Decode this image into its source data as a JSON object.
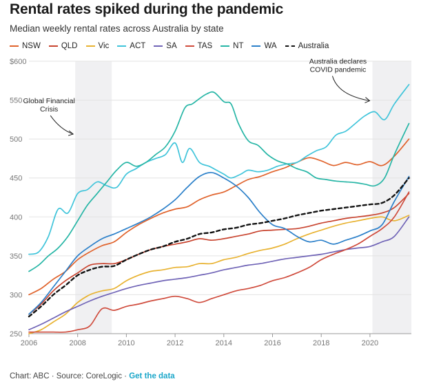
{
  "header": {
    "title": "Rental rates spiked during the pandemic",
    "subtitle": "Median weekly rental rates across Australia by state"
  },
  "footer": {
    "source": "Chart: ABC · Source: CoreLogic · ",
    "link": "Get the data"
  },
  "chart_data": {
    "type": "line",
    "title": "Rental rates spiked during the pandemic",
    "subtitle": "Median weekly rental rates across Australia by state",
    "xlabel": "",
    "ylabel": "",
    "xlim": [
      2006,
      2021.7
    ],
    "ylim": [
      250,
      600
    ],
    "xticks": [
      2006,
      2008,
      2010,
      2012,
      2014,
      2016,
      2018,
      2020
    ],
    "xtick_labels": [
      "2006",
      "2008",
      "2010",
      "2012",
      "2014",
      "2016",
      "2018",
      "2020"
    ],
    "yticks": [
      250,
      300,
      350,
      400,
      450,
      500,
      550,
      600
    ],
    "ytick_labels": [
      "250",
      "300",
      "350",
      "400",
      "450",
      "500",
      "550",
      "$600"
    ],
    "grid": true,
    "shaded_periods": [
      [
        2007.9,
        2009.4
      ],
      [
        2020.1,
        2021.7
      ]
    ],
    "annotations": [
      {
        "text": [
          "Global Financial",
          "Crisis"
        ],
        "x": 2007.9,
        "y": 509
      },
      {
        "text": [
          "Australia declares",
          "COVID pandemic"
        ],
        "x": 2020.1,
        "y": 551
      }
    ],
    "series": [
      {
        "name": "NSW",
        "color": "#e0622b",
        "dashed": false,
        "x": [
          2006,
          2006.5,
          2007,
          2007.5,
          2008,
          2008.5,
          2009,
          2009.5,
          2010,
          2010.5,
          2011,
          2011.5,
          2012,
          2012.5,
          2013,
          2013.5,
          2014,
          2014.5,
          2015,
          2015.5,
          2016,
          2016.5,
          2017,
          2017.5,
          2018,
          2018.5,
          2019,
          2019.5,
          2020,
          2020.5,
          2021,
          2021.6
        ],
        "y": [
          300,
          308,
          320,
          330,
          345,
          355,
          363,
          368,
          380,
          390,
          398,
          405,
          410,
          413,
          422,
          428,
          432,
          440,
          448,
          452,
          458,
          463,
          470,
          476,
          472,
          466,
          470,
          467,
          471,
          466,
          478,
          500
        ]
      },
      {
        "name": "QLD",
        "color": "#c8432e",
        "dashed": false,
        "x": [
          2006,
          2006.5,
          2007,
          2007.5,
          2008,
          2008.5,
          2009,
          2009.5,
          2010,
          2010.5,
          2011,
          2011.5,
          2012,
          2012.5,
          2013,
          2013.5,
          2014,
          2014.5,
          2015,
          2015.5,
          2016,
          2016.5,
          2017,
          2017.5,
          2018,
          2018.5,
          2019,
          2019.5,
          2020,
          2020.5,
          2021,
          2021.6
        ],
        "y": [
          275,
          288,
          305,
          318,
          328,
          338,
          340,
          340,
          345,
          352,
          358,
          362,
          365,
          368,
          372,
          370,
          372,
          375,
          378,
          382,
          383,
          384,
          385,
          388,
          392,
          395,
          398,
          400,
          402,
          405,
          412,
          430
        ]
      },
      {
        "name": "Vic",
        "color": "#e8b230",
        "dashed": false,
        "x": [
          2006,
          2006.5,
          2007,
          2007.5,
          2008,
          2008.5,
          2009,
          2009.5,
          2010,
          2010.5,
          2011,
          2011.5,
          2012,
          2012.5,
          2013,
          2013.5,
          2014,
          2014.5,
          2015,
          2015.5,
          2016,
          2016.5,
          2017,
          2017.5,
          2018,
          2018.5,
          2019,
          2019.5,
          2020,
          2020.5,
          2021,
          2021.6
        ],
        "y": [
          250,
          255,
          265,
          275,
          290,
          300,
          305,
          308,
          318,
          325,
          330,
          332,
          335,
          336,
          340,
          340,
          345,
          348,
          353,
          357,
          360,
          365,
          372,
          378,
          383,
          388,
          392,
          395,
          398,
          400,
          395,
          402
        ]
      },
      {
        "name": "ACT",
        "color": "#3fc4da",
        "dashed": false,
        "x": [
          2006,
          2006.4,
          2006.8,
          2007.2,
          2007.6,
          2008,
          2008.4,
          2008.8,
          2009.2,
          2009.6,
          2010,
          2010.4,
          2010.8,
          2011.2,
          2011.6,
          2012,
          2012.3,
          2012.6,
          2013,
          2013.4,
          2013.7,
          2014,
          2014.3,
          2014.7,
          2015,
          2015.4,
          2015.8,
          2016.2,
          2016.6,
          2017,
          2017.4,
          2017.8,
          2018.2,
          2018.6,
          2019,
          2019.4,
          2019.8,
          2020.2,
          2020.6,
          2021,
          2021.6
        ],
        "y": [
          352,
          355,
          375,
          410,
          405,
          430,
          435,
          445,
          440,
          438,
          455,
          462,
          470,
          475,
          480,
          495,
          470,
          488,
          470,
          465,
          460,
          455,
          450,
          455,
          460,
          458,
          460,
          465,
          468,
          470,
          478,
          485,
          490,
          505,
          510,
          520,
          530,
          535,
          525,
          545,
          570
        ]
      },
      {
        "name": "SA",
        "color": "#6f63b6",
        "dashed": false,
        "x": [
          2006,
          2006.5,
          2007,
          2007.5,
          2008,
          2008.5,
          2009,
          2009.5,
          2010,
          2010.5,
          2011,
          2011.5,
          2012,
          2012.5,
          2013,
          2013.5,
          2014,
          2014.5,
          2015,
          2015.5,
          2016,
          2016.5,
          2017,
          2017.5,
          2018,
          2018.5,
          2019,
          2019.5,
          2020,
          2020.5,
          2021,
          2021.6
        ],
        "y": [
          255,
          262,
          270,
          278,
          285,
          292,
          298,
          303,
          308,
          312,
          315,
          318,
          320,
          322,
          325,
          328,
          332,
          335,
          338,
          340,
          343,
          346,
          348,
          350,
          352,
          355,
          358,
          360,
          362,
          368,
          375,
          400
        ]
      },
      {
        "name": "TAS",
        "color": "#cf4a3b",
        "dashed": false,
        "x": [
          2006,
          2006.5,
          2007,
          2007.5,
          2008,
          2008.5,
          2009,
          2009.5,
          2010,
          2010.5,
          2011,
          2011.5,
          2012,
          2012.5,
          2013,
          2013.5,
          2014,
          2014.5,
          2015,
          2015.5,
          2016,
          2016.5,
          2017,
          2017.5,
          2018,
          2018.5,
          2019,
          2019.5,
          2020,
          2020.5,
          2021,
          2021.6
        ],
        "y": [
          252,
          252,
          252,
          252,
          255,
          260,
          282,
          280,
          285,
          288,
          292,
          295,
          298,
          295,
          290,
          295,
          300,
          305,
          308,
          312,
          318,
          322,
          328,
          335,
          345,
          352,
          358,
          365,
          375,
          385,
          400,
          432
        ]
      },
      {
        "name": "NT",
        "color": "#25b5a5",
        "dashed": false,
        "x": [
          2006,
          2006.4,
          2006.8,
          2007.2,
          2007.6,
          2008,
          2008.4,
          2008.8,
          2009.2,
          2009.6,
          2010,
          2010.4,
          2010.8,
          2011.2,
          2011.6,
          2012,
          2012.4,
          2012.7,
          2013,
          2013.3,
          2013.6,
          2014,
          2014.3,
          2014.6,
          2015,
          2015.4,
          2015.8,
          2016.2,
          2016.6,
          2017,
          2017.4,
          2017.8,
          2018.2,
          2018.6,
          2019,
          2019.4,
          2019.8,
          2020.2,
          2020.6,
          2021,
          2021.6
        ],
        "y": [
          330,
          338,
          350,
          360,
          375,
          395,
          415,
          430,
          445,
          460,
          470,
          465,
          470,
          480,
          490,
          510,
          540,
          545,
          552,
          558,
          560,
          548,
          545,
          520,
          498,
          492,
          480,
          472,
          468,
          462,
          458,
          450,
          448,
          446,
          445,
          444,
          442,
          440,
          450,
          480,
          520
        ]
      },
      {
        "name": "WA",
        "color": "#2a7fc9",
        "dashed": false,
        "x": [
          2006,
          2006.5,
          2007,
          2007.5,
          2008,
          2008.5,
          2009,
          2009.5,
          2010,
          2010.5,
          2011,
          2011.5,
          2012,
          2012.5,
          2013,
          2013.5,
          2014,
          2014.5,
          2015,
          2015.5,
          2016,
          2016.5,
          2017,
          2017.5,
          2018,
          2018.5,
          2019,
          2019.5,
          2020,
          2020.5,
          2021,
          2021.6
        ],
        "y": [
          275,
          290,
          310,
          330,
          350,
          362,
          372,
          378,
          385,
          392,
          400,
          410,
          422,
          438,
          452,
          457,
          450,
          440,
          425,
          405,
          390,
          385,
          375,
          368,
          370,
          365,
          370,
          375,
          382,
          390,
          420,
          452
        ]
      },
      {
        "name": "Australia",
        "color": "#111111",
        "dashed": true,
        "x": [
          2006,
          2006.5,
          2007,
          2007.5,
          2008,
          2008.5,
          2009,
          2009.5,
          2010,
          2010.5,
          2011,
          2011.5,
          2012,
          2012.5,
          2013,
          2013.5,
          2014,
          2014.5,
          2015,
          2015.5,
          2016,
          2016.5,
          2017,
          2017.5,
          2018,
          2018.5,
          2019,
          2019.5,
          2020,
          2020.5,
          2021,
          2021.6
        ],
        "y": [
          272,
          285,
          300,
          312,
          325,
          332,
          336,
          337,
          345,
          352,
          358,
          362,
          368,
          372,
          378,
          380,
          384,
          386,
          390,
          392,
          395,
          398,
          402,
          405,
          408,
          410,
          412,
          414,
          416,
          418,
          428,
          450
        ]
      }
    ]
  }
}
